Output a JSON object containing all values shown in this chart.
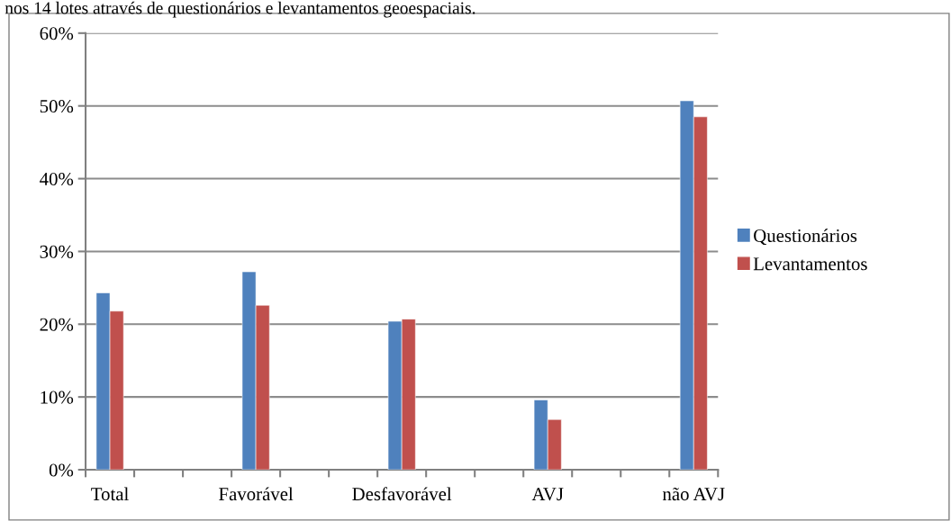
{
  "chart_data": {
    "type": "bar",
    "annotations": [
      "nos 14 lotes através de questionários e levantamentos geoespaciais."
    ],
    "categories": [
      "Total",
      null,
      null,
      "Favorável",
      null,
      null,
      "Desfavorável",
      null,
      null,
      "AVJ",
      null,
      null,
      "não AVJ"
    ],
    "series": [
      {
        "name": "Questionários",
        "color": "#4f81bd",
        "values": [
          24.3,
          null,
          null,
          27.2,
          null,
          null,
          20.4,
          null,
          null,
          9.6,
          null,
          null,
          50.7
        ]
      },
      {
        "name": "Levantamentos",
        "color": "#c0504d",
        "values": [
          21.8,
          null,
          null,
          22.6,
          null,
          null,
          20.7,
          null,
          null,
          6.9,
          null,
          null,
          48.5
        ]
      }
    ],
    "ylim": [
      0,
      60
    ],
    "yticks": [
      {
        "value": 0,
        "label": "0%"
      },
      {
        "value": 10,
        "label": "10%"
      },
      {
        "value": 20,
        "label": "20%"
      },
      {
        "value": 30,
        "label": "30%"
      },
      {
        "value": 40,
        "label": "40%"
      },
      {
        "value": 50,
        "label": "50%"
      },
      {
        "value": 60,
        "label": "60%"
      }
    ],
    "grid": "y",
    "legend": "right"
  }
}
